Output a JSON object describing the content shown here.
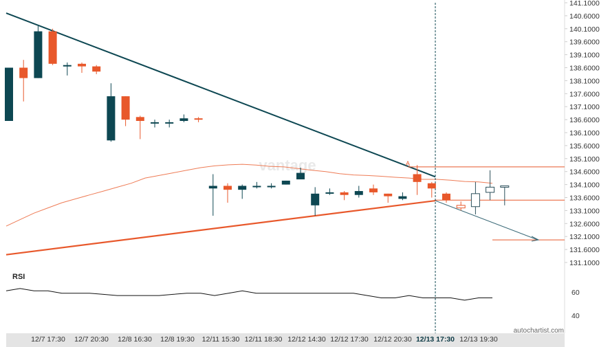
{
  "chart_data": [
    {
      "type": "candlestick",
      "price_axis": {
        "ticks": [
          "141.1000",
          "140.6000",
          "140.1000",
          "139.6000",
          "139.1000",
          "138.6000",
          "138.1000",
          "137.6000",
          "137.1000",
          "136.6000",
          "136.1000",
          "135.6000",
          "135.1000",
          "134.6000",
          "134.1000",
          "133.6000",
          "133.1000",
          "132.6000",
          "132.1000",
          "131.6000",
          "131.1000"
        ],
        "range": [
          130.95,
          141.2
        ]
      },
      "time_axis": {
        "ticks": [
          "12/7 17:30",
          "12/7 20:30",
          "12/8 16:30",
          "12/8 19:30",
          "12/11 15:30",
          "12/11 18:30",
          "12/12 14:30",
          "12/12 17:30",
          "12/12 20:30",
          "12/13 17:30",
          "12/13 19:30"
        ],
        "highlighted": "12/13 17:30"
      },
      "candles": [
        {
          "o": 136.55,
          "h": 138.6,
          "l": 136.55,
          "c": 138.6
        },
        {
          "o": 138.6,
          "h": 138.9,
          "l": 137.3,
          "c": 138.2
        },
        {
          "o": 138.2,
          "h": 140.2,
          "l": 138.2,
          "c": 140.0
        },
        {
          "o": 140.0,
          "h": 140.1,
          "l": 138.7,
          "c": 138.75
        },
        {
          "o": 138.7,
          "h": 138.8,
          "l": 138.3,
          "c": 138.7
        },
        {
          "o": 138.75,
          "h": 138.8,
          "l": 138.4,
          "c": 138.65
        },
        {
          "o": 138.65,
          "h": 138.7,
          "l": 138.35,
          "c": 138.45
        },
        {
          "o": 135.8,
          "h": 138.0,
          "l": 135.75,
          "c": 137.5
        },
        {
          "o": 137.5,
          "h": 137.5,
          "l": 136.35,
          "c": 136.6
        },
        {
          "o": 136.7,
          "h": 136.75,
          "l": 135.85,
          "c": 136.55
        },
        {
          "o": 136.5,
          "h": 136.6,
          "l": 136.3,
          "c": 136.5
        },
        {
          "o": 136.5,
          "h": 136.6,
          "l": 136.3,
          "c": 136.5
        },
        {
          "o": 136.55,
          "h": 136.8,
          "l": 136.5,
          "c": 136.65
        },
        {
          "o": 136.65,
          "h": 136.7,
          "l": 136.5,
          "c": 136.6
        },
        {
          "o": 133.95,
          "h": 134.5,
          "l": 132.9,
          "c": 134.05
        },
        {
          "o": 134.05,
          "h": 134.15,
          "l": 133.4,
          "c": 133.9
        },
        {
          "o": 133.9,
          "h": 134.1,
          "l": 133.55,
          "c": 134.05
        },
        {
          "o": 134.05,
          "h": 134.2,
          "l": 133.95,
          "c": 134.05
        },
        {
          "o": 134.05,
          "h": 134.15,
          "l": 133.95,
          "c": 134.05
        },
        {
          "o": 134.1,
          "h": 134.25,
          "l": 134.1,
          "c": 134.25
        },
        {
          "o": 134.3,
          "h": 134.75,
          "l": 134.3,
          "c": 134.55
        },
        {
          "o": 133.3,
          "h": 134.0,
          "l": 132.9,
          "c": 133.75
        },
        {
          "o": 133.75,
          "h": 133.95,
          "l": 133.7,
          "c": 133.8
        },
        {
          "o": 133.8,
          "h": 133.85,
          "l": 133.5,
          "c": 133.7
        },
        {
          "o": 133.7,
          "h": 134.05,
          "l": 133.6,
          "c": 133.85
        },
        {
          "o": 133.95,
          "h": 134.1,
          "l": 133.7,
          "c": 133.8
        },
        {
          "o": 133.75,
          "h": 133.75,
          "l": 133.4,
          "c": 133.65
        },
        {
          "o": 133.55,
          "h": 133.8,
          "l": 133.5,
          "c": 133.65
        },
        {
          "o": 134.5,
          "h": 134.85,
          "l": 133.7,
          "c": 134.2
        },
        {
          "o": 134.15,
          "h": 134.2,
          "l": 133.6,
          "c": 133.95
        },
        {
          "o": 133.75,
          "h": 133.8,
          "l": 133.4,
          "c": 133.5
        }
      ],
      "forecast_candles": [
        {
          "o": 133.3,
          "h": 133.45,
          "l": 133.1,
          "c": 133.2
        },
        {
          "o": 133.25,
          "h": 134.2,
          "l": 132.95,
          "c": 133.75
        },
        {
          "o": 133.8,
          "h": 134.65,
          "l": 133.5,
          "c": 134.0
        },
        {
          "o": 134.0,
          "h": 134.05,
          "l": 133.3,
          "c": 134.05
        }
      ],
      "moving_average": [
        132.5,
        132.75,
        133.0,
        133.2,
        133.4,
        133.55,
        133.7,
        133.85,
        134.0,
        134.15,
        134.35,
        134.45,
        134.55,
        134.65,
        134.75,
        134.82,
        134.86,
        134.88,
        134.85,
        134.8,
        134.78,
        134.72,
        134.65,
        134.6,
        134.52,
        134.47,
        134.45,
        134.42,
        134.38,
        134.35,
        134.3,
        134.3,
        134.27,
        134.22,
        134.2,
        134.15
      ],
      "pattern": {
        "upper_trendline": {
          "from": 140.7,
          "to": 134.4
        },
        "lower_trendline": {
          "from": 131.4,
          "to": 133.48
        },
        "levels": [
          134.78,
          133.5,
          131.97
        ],
        "point_label": "A"
      },
      "watermark": "vantage",
      "attribution": "autochartist.com"
    },
    {
      "type": "line",
      "title": "RSI",
      "y_ticks": [
        "60",
        "40"
      ],
      "values": [
        61,
        63,
        61,
        61,
        59,
        59,
        59,
        58,
        57,
        57,
        57,
        57,
        58,
        59,
        59,
        57,
        59,
        61,
        59,
        59,
        59,
        59,
        59,
        59,
        59,
        59,
        57,
        55,
        55,
        57,
        55,
        55,
        55,
        53,
        55,
        55
      ]
    }
  ]
}
